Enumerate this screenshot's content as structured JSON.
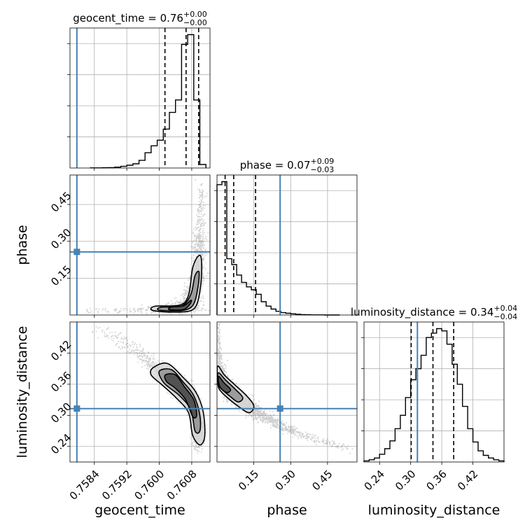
{
  "chart_data": {
    "type": "corner",
    "parameters": [
      "geocent_time",
      "phase",
      "luminosity_distance"
    ],
    "truths": {
      "geocent_time": 0.75797,
      "phase": 0.257,
      "luminosity_distance": 0.313
    },
    "colors": {
      "truth": "#4682b4",
      "hist": "#000000",
      "grid": "#b0b0b0",
      "samples": "#555555"
    },
    "titles": [
      {
        "param": "geocent_time",
        "name": "geocent_time",
        "median": "0.76",
        "plus": "+0.00",
        "minus": "−0.00"
      },
      {
        "param": "phase",
        "name": "phase",
        "median": "0.07",
        "plus": "+0.09",
        "minus": "−0.03"
      },
      {
        "param": "luminosity_distance",
        "name": "luminosity_distance",
        "median": "0.34",
        "plus": "+0.04",
        "minus": "−0.04"
      }
    ],
    "axes": {
      "geocent_time": {
        "range": [
          0.7578,
          0.76125
        ],
        "ticks": [
          0.7584,
          0.7592,
          0.76,
          0.7608
        ],
        "tick_labels": [
          "0.7584",
          "0.7592",
          "0.7600",
          "0.7608"
        ],
        "label": "geocent_time"
      },
      "phase": {
        "range": [
          0.0,
          0.57
        ],
        "ticks": [
          0.15,
          0.3,
          0.45
        ],
        "tick_labels": [
          "0.15",
          "0.30",
          "0.45"
        ],
        "label": "phase"
      },
      "luminosity_distance": {
        "range": [
          0.21,
          0.48
        ],
        "ticks": [
          0.24,
          0.3,
          0.36,
          0.42
        ],
        "tick_labels": [
          "0.24",
          "0.30",
          "0.36",
          "0.42"
        ],
        "label": "luminosity_distance"
      }
    },
    "histograms": {
      "geocent_time": {
        "bin_edges": [
          0.7583,
          0.75845,
          0.7586,
          0.75875,
          0.7589,
          0.75905,
          0.7592,
          0.75935,
          0.7595,
          0.75965,
          0.7598,
          0.75995,
          0.7601,
          0.76025,
          0.7604,
          0.76055,
          0.7607,
          0.76085,
          0.761,
          0.76115
        ],
        "counts": [
          1,
          1,
          2,
          3,
          6,
          12,
          20,
          30,
          55,
          110,
          160,
          200,
          280,
          400,
          490,
          890,
          960,
          490,
          25
        ],
        "quantiles": [
          0.76014,
          0.76066,
          0.76097
        ]
      },
      "phase": {
        "bin_edges": [
          0.0,
          0.02,
          0.04,
          0.06,
          0.08,
          0.1,
          0.12,
          0.14,
          0.16,
          0.18,
          0.2,
          0.22,
          0.24,
          0.26,
          0.28,
          0.3,
          0.32,
          0.34,
          0.36,
          0.38,
          0.4,
          0.42,
          0.44,
          0.46,
          0.48,
          0.5
        ],
        "counts": [
          880,
          900,
          380,
          340,
          270,
          220,
          190,
          170,
          140,
          90,
          60,
          40,
          25,
          16,
          12,
          8,
          5,
          3,
          2,
          1,
          1,
          1,
          0,
          0,
          0
        ],
        "quantiles": [
          0.033,
          0.068,
          0.157
        ]
      },
      "luminosity_distance": {
        "bin_edges": [
          0.21,
          0.22,
          0.23,
          0.24,
          0.25,
          0.26,
          0.27,
          0.28,
          0.29,
          0.3,
          0.31,
          0.32,
          0.33,
          0.34,
          0.35,
          0.36,
          0.37,
          0.38,
          0.39,
          0.4,
          0.41,
          0.42,
          0.43,
          0.44,
          0.45,
          0.46,
          0.47,
          0.48
        ],
        "counts": [
          5,
          10,
          18,
          35,
          60,
          95,
          150,
          210,
          290,
          370,
          420,
          480,
          560,
          580,
          600,
          590,
          530,
          440,
          350,
          250,
          150,
          90,
          50,
          30,
          18,
          10,
          5
        ],
        "quantiles": [
          0.301,
          0.343,
          0.383
        ]
      }
    },
    "joint": [
      {
        "x": "geocent_time",
        "y": "phase",
        "ridge": [
          [
            0.76008,
            0.02
          ],
          [
            0.76045,
            0.025
          ],
          [
            0.7607,
            0.05
          ],
          [
            0.76085,
            0.1
          ],
          [
            0.76092,
            0.16
          ],
          [
            0.76095,
            0.22
          ],
          [
            0.76098,
            0.3
          ],
          [
            0.761,
            0.38
          ],
          [
            0.76102,
            0.46
          ],
          [
            0.76103,
            0.52
          ]
        ],
        "spread_x": [
          0.00034,
          0.00022,
          0.0001,
          9e-05,
          8e-05,
          7e-05,
          7e-05,
          6e-05,
          6e-05,
          5e-05
        ],
        "spread_y": [
          0.006,
          0.008,
          0.014,
          0.02,
          0.02,
          0.02,
          0.025,
          0.03,
          0.03,
          0.03
        ],
        "weights": [
          4,
          5,
          6,
          5,
          4,
          3,
          2,
          1,
          0.5,
          0.2
        ],
        "points": 1700,
        "tail_points": 90,
        "contours": [
          [
            [
              0.75985,
              0.018
            ],
            [
              0.7605,
              0.012
            ],
            [
              0.76088,
              0.03
            ],
            [
              0.76102,
              0.12
            ],
            [
              0.76104,
              0.225
            ],
            [
              0.76096,
              0.24
            ],
            [
              0.76082,
              0.19
            ],
            [
              0.76072,
              0.08
            ],
            [
              0.7605,
              0.04
            ],
            [
              0.7599,
              0.036
            ]
          ],
          [
            [
              0.76,
              0.02
            ],
            [
              0.76055,
              0.018
            ],
            [
              0.76083,
              0.04
            ],
            [
              0.76095,
              0.11
            ],
            [
              0.76098,
              0.175
            ],
            [
              0.76088,
              0.16
            ],
            [
              0.76078,
              0.085
            ],
            [
              0.76055,
              0.037
            ],
            [
              0.76005,
              0.032
            ]
          ],
          [
            [
              0.76025,
              0.022
            ],
            [
              0.7606,
              0.022
            ],
            [
              0.76076,
              0.045
            ],
            [
              0.76078,
              0.06
            ],
            [
              0.7606,
              0.038
            ],
            [
              0.7603,
              0.033
            ]
          ]
        ]
      },
      {
        "x": "geocent_time",
        "y": "luminosity_distance",
        "ridge": [
          [
            0.7583,
            0.47
          ],
          [
            0.7588,
            0.455
          ],
          [
            0.7593,
            0.432
          ],
          [
            0.7597,
            0.407
          ],
          [
            0.76,
            0.388
          ],
          [
            0.76025,
            0.372
          ],
          [
            0.76045,
            0.358
          ],
          [
            0.76065,
            0.343
          ],
          [
            0.76082,
            0.325
          ],
          [
            0.76092,
            0.3
          ],
          [
            0.76095,
            0.272
          ],
          [
            0.76095,
            0.245
          ]
        ],
        "spread_x": [
          8e-05,
          8e-05,
          8e-05,
          8e-05,
          8e-05,
          8e-05,
          8e-05,
          7e-05,
          7e-05,
          7e-05,
          7e-05,
          7e-05
        ],
        "spread_y": [
          0.006,
          0.006,
          0.007,
          0.008,
          0.009,
          0.01,
          0.01,
          0.01,
          0.01,
          0.011,
          0.01,
          0.008
        ],
        "weights": [
          0.3,
          0.6,
          1,
          2,
          3,
          4,
          5,
          5,
          5,
          4,
          2.5,
          1
        ],
        "points": 2200,
        "tail_points": 0,
        "contours": [
          [
            [
              0.75985,
              0.392
            ],
            [
              0.7602,
              0.4
            ],
            [
              0.7606,
              0.372
            ],
            [
              0.7609,
              0.345
            ],
            [
              0.76108,
              0.308
            ],
            [
              0.76112,
              0.26
            ],
            [
              0.761,
              0.243
            ],
            [
              0.76082,
              0.262
            ],
            [
              0.76072,
              0.305
            ],
            [
              0.7604,
              0.335
            ],
            [
              0.76005,
              0.36
            ],
            [
              0.7598,
              0.378
            ]
          ],
          [
            [
              0.76,
              0.385
            ],
            [
              0.7603,
              0.388
            ],
            [
              0.76058,
              0.365
            ],
            [
              0.76085,
              0.338
            ],
            [
              0.761,
              0.3
            ],
            [
              0.761,
              0.27
            ],
            [
              0.76088,
              0.27
            ],
            [
              0.76078,
              0.31
            ],
            [
              0.7605,
              0.338
            ],
            [
              0.76012,
              0.362
            ]
          ],
          [
            [
              0.76015,
              0.378
            ],
            [
              0.7604,
              0.378
            ],
            [
              0.76062,
              0.355
            ],
            [
              0.76085,
              0.33
            ],
            [
              0.76092,
              0.3
            ],
            [
              0.76082,
              0.298
            ],
            [
              0.76065,
              0.33
            ],
            [
              0.7604,
              0.352
            ],
            [
              0.76018,
              0.365
            ]
          ]
        ]
      },
      {
        "x": "phase",
        "y": "luminosity_distance",
        "ridge": [
          [
            0.005,
            0.47
          ],
          [
            0.008,
            0.42
          ],
          [
            0.015,
            0.378
          ],
          [
            0.04,
            0.355
          ],
          [
            0.08,
            0.335
          ],
          [
            0.13,
            0.318
          ],
          [
            0.18,
            0.3
          ],
          [
            0.24,
            0.285
          ],
          [
            0.3,
            0.272
          ],
          [
            0.36,
            0.262
          ],
          [
            0.42,
            0.252
          ],
          [
            0.48,
            0.243
          ],
          [
            0.53,
            0.235
          ]
        ],
        "spread_x": [
          0.004,
          0.005,
          0.008,
          0.012,
          0.015,
          0.015,
          0.015,
          0.015,
          0.015,
          0.015,
          0.015,
          0.015,
          0.01
        ],
        "spread_y": [
          0.01,
          0.01,
          0.009,
          0.008,
          0.007,
          0.006,
          0.005,
          0.004,
          0.004,
          0.003,
          0.003,
          0.003,
          0.003
        ],
        "weights": [
          0.5,
          1.5,
          4,
          5,
          4,
          3,
          2,
          1.3,
          0.8,
          0.5,
          0.3,
          0.2,
          0.1
        ],
        "points": 2000,
        "tail_points": 0,
        "contours": [
          [
            [
              0.003,
              0.395
            ],
            [
              0.03,
              0.378
            ],
            [
              0.07,
              0.36
            ],
            [
              0.12,
              0.338
            ],
            [
              0.15,
              0.318
            ],
            [
              0.13,
              0.305
            ],
            [
              0.085,
              0.318
            ],
            [
              0.04,
              0.335
            ],
            [
              0.01,
              0.35
            ],
            [
              0.003,
              0.365
            ]
          ],
          [
            [
              0.005,
              0.382
            ],
            [
              0.035,
              0.368
            ],
            [
              0.075,
              0.35
            ],
            [
              0.105,
              0.334
            ],
            [
              0.085,
              0.326
            ],
            [
              0.05,
              0.338
            ],
            [
              0.015,
              0.352
            ],
            [
              0.005,
              0.36
            ]
          ],
          [
            [
              0.006,
              0.375
            ],
            [
              0.03,
              0.362
            ],
            [
              0.055,
              0.35
            ],
            [
              0.04,
              0.344
            ],
            [
              0.012,
              0.355
            ]
          ]
        ]
      }
    ]
  }
}
